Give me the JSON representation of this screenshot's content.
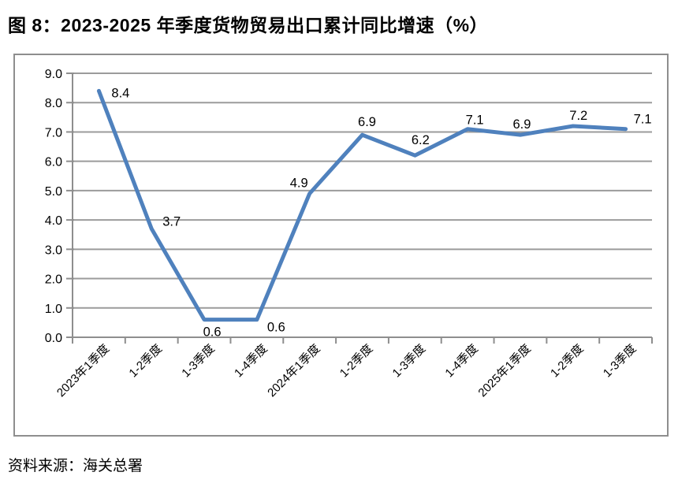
{
  "page": {
    "title": "图 8：2023-2025 年季度货物贸易出口累计同比增速（%）",
    "source": "资料来源：海关总署"
  },
  "chart_data": {
    "type": "line",
    "title": "图 8：2023-2025 年季度货物贸易出口累计同比增速（%）",
    "categories": [
      "2023年1季度",
      "1-2季度",
      "1-3季度",
      "1-4季度",
      "2024年1季度",
      "1-2季度",
      "1-3季度",
      "1-4季度",
      "2025年1季度",
      "1-2季度",
      "1-3季度"
    ],
    "values": [
      8.4,
      3.7,
      0.6,
      0.6,
      4.9,
      6.9,
      6.2,
      7.1,
      6.9,
      7.2,
      7.1
    ],
    "data_labels": [
      "8.4",
      "3.7",
      "0.6",
      "0.6",
      "4.9",
      "6.9",
      "6.2",
      "7.1",
      "6.9",
      "7.2",
      "7.1"
    ],
    "ytick_labels": [
      "0.0",
      "1.0",
      "2.0",
      "3.0",
      "4.0",
      "5.0",
      "6.0",
      "7.0",
      "8.0",
      "9.0"
    ],
    "ylim": [
      0,
      9
    ],
    "ytick_step": 1,
    "xlabel": "",
    "ylabel": "",
    "grid": true,
    "legend": "none",
    "colors": {
      "line": "#4F81BD",
      "grid": "#9b9b9b",
      "axis": "#8e8e8e",
      "text": "#000000"
    }
  }
}
